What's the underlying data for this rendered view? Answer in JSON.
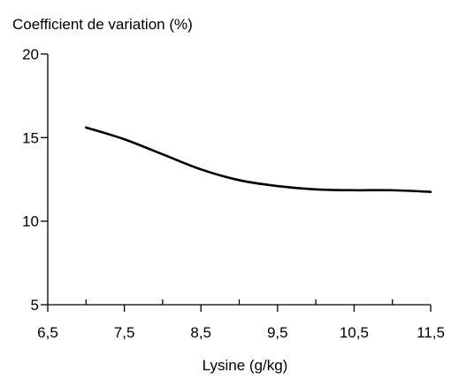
{
  "chart_data": {
    "type": "line",
    "title": "",
    "ylabel": "Coefficient de variation (%)",
    "xlabel": "Lysine (g/kg)",
    "xlim": [
      6.5,
      11.5
    ],
    "ylim": [
      5,
      20
    ],
    "x_ticks": [
      {
        "value": 6.5,
        "label": "6,5"
      },
      {
        "value": 7.5,
        "label": "7,5"
      },
      {
        "value": 8.5,
        "label": "8,5"
      },
      {
        "value": 9.5,
        "label": "9,5"
      },
      {
        "value": 10.5,
        "label": "10,5"
      },
      {
        "value": 11.5,
        "label": "11,5"
      }
    ],
    "x_minor_ticks": [
      7.0,
      8.0,
      9.0,
      10.0,
      11.0
    ],
    "y_ticks": [
      {
        "value": 5,
        "label": "5"
      },
      {
        "value": 10,
        "label": "10"
      },
      {
        "value": 15,
        "label": "15"
      },
      {
        "value": 20,
        "label": "20"
      }
    ],
    "grid": false,
    "series": [
      {
        "x": [
          7.0,
          7.5,
          8.0,
          8.5,
          9.0,
          9.5,
          10.0,
          10.5,
          11.0,
          11.5
        ],
        "y": [
          15.6,
          14.9,
          14.0,
          13.1,
          12.45,
          12.1,
          11.9,
          11.85,
          11.85,
          11.75
        ]
      }
    ],
    "colors": {
      "line": "#000000",
      "axis": "#000000",
      "background": "#ffffff"
    }
  }
}
